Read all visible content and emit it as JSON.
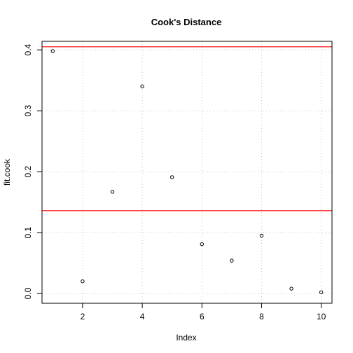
{
  "chart_data": {
    "type": "scatter",
    "title": "Cook's Distance",
    "xlabel": "Index",
    "ylabel": "fit.cook",
    "xlim": [
      0.64,
      10.36
    ],
    "ylim": [
      -0.016,
      0.414
    ],
    "x_ticks": [
      2,
      4,
      6,
      8,
      10
    ],
    "y_ticks": [
      0.0,
      0.1,
      0.2,
      0.3,
      0.4
    ],
    "y_tick_labels": [
      "0.0",
      "0.1",
      "0.2",
      "0.3",
      "0.4"
    ],
    "grid": true,
    "x": [
      1,
      2,
      3,
      4,
      5,
      6,
      7,
      8,
      9,
      10
    ],
    "y": [
      0.398,
      0.02,
      0.167,
      0.34,
      0.191,
      0.081,
      0.054,
      0.095,
      0.008,
      0.002
    ],
    "hlines": [
      {
        "y": 0.405,
        "color": "#ff0000"
      },
      {
        "y": 0.136,
        "color": "#ff0000"
      }
    ],
    "point_color": "#000000",
    "grid_color": "#c8c8c8"
  }
}
